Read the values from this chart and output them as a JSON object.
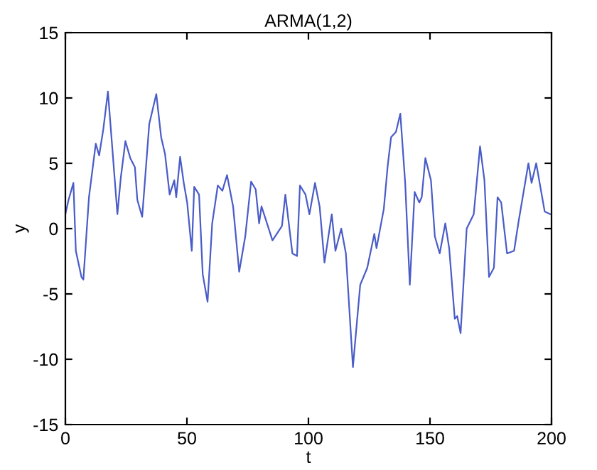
{
  "chart_data": {
    "type": "line",
    "title": "ARMA(1,2)",
    "xlabel": "t",
    "ylabel": "y",
    "xlim": [
      0,
      200
    ],
    "ylim": [
      -15,
      15
    ],
    "xticks": [
      0,
      50,
      100,
      150,
      200
    ],
    "yticks": [
      -15,
      -10,
      -5,
      0,
      5,
      10,
      15
    ],
    "grid": false,
    "marker": "none",
    "line_style": "solid",
    "series": [
      {
        "color": "#4a5cc8",
        "x": [
          0,
          1.3,
          3.3,
          4.3,
          6.6,
          7.4,
          9.7,
          12.5,
          13.9,
          15.6,
          17.5,
          19.5,
          21.4,
          22.8,
          24.7,
          26.7,
          28.6,
          29.6,
          31.6,
          34.5,
          37.4,
          39.4,
          41,
          42.9,
          44.8,
          45.6,
          47.2,
          48.7,
          50.1,
          52,
          53,
          55,
          56.5,
          58.5,
          60.4,
          62.7,
          64.6,
          66.5,
          69,
          71.5,
          74,
          76.4,
          78.3,
          79.7,
          80.7,
          85.2,
          89.1,
          90.5,
          93.4,
          95.3,
          96.5,
          98.8,
          100.4,
          102.7,
          104.6,
          106.6,
          108.2,
          109.6,
          111.1,
          113.5,
          115.4,
          118.3,
          121.3,
          124.2,
          127.1,
          128,
          131,
          132.6,
          134,
          136,
          137.8,
          139.8,
          141.7,
          143.7,
          145.6,
          146.6,
          148.1,
          150.4,
          152,
          154,
          156.3,
          157.9,
          160.2,
          161.2,
          162.6,
          165.1,
          168,
          170.6,
          172.4,
          174.3,
          176.3,
          177.8,
          179.3,
          181.7,
          184.6,
          186.5,
          190.5,
          191.8,
          193.7,
          197.2,
          199.6
        ],
        "values": [
          1.1,
          2.2,
          3.5,
          -1.7,
          -3.7,
          -3.9,
          2.4,
          6.5,
          5.6,
          7.6,
          10.5,
          5.7,
          1.1,
          3.9,
          6.7,
          5.4,
          4.7,
          2.2,
          0.9,
          8,
          10.3,
          7,
          5.7,
          2.6,
          3.7,
          2.4,
          5.5,
          3.5,
          2,
          -1.7,
          3.2,
          2.6,
          -3.5,
          -5.6,
          0.4,
          3.3,
          2.9,
          4.1,
          1.7,
          -3.3,
          -0.6,
          3.6,
          3,
          0.4,
          1.7,
          -0.9,
          0.2,
          2.6,
          -1.9,
          -2.1,
          3.3,
          2.6,
          1.1,
          3.5,
          1.7,
          -2.6,
          -0.6,
          1.1,
          -1.7,
          0,
          -1.9,
          -10.6,
          -4.3,
          -3,
          -0.4,
          -1.5,
          1.5,
          4.8,
          7,
          7.4,
          8.8,
          3.5,
          -4.3,
          2.8,
          2,
          2.4,
          5.4,
          3.7,
          -0.6,
          -1.9,
          0.4,
          -1.5,
          -6.9,
          -6.7,
          -8,
          0,
          1.1,
          6.3,
          3.7,
          -3.7,
          -3,
          2.4,
          2,
          -1.9,
          -1.7,
          0.6,
          5,
          3.5,
          5,
          1.3,
          1.1
        ]
      }
    ]
  }
}
